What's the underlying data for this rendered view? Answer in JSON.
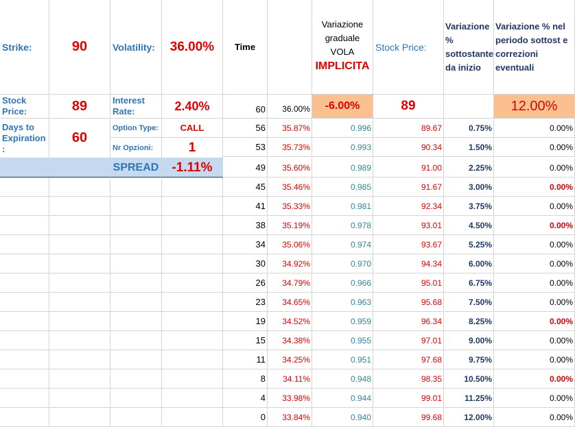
{
  "params": {
    "strike_label": "Strike:",
    "strike_value": "90",
    "volatility_label": "Volatility:",
    "volatility_value": "36.00%",
    "stock_price_label": "Stock Price:",
    "stock_price_value": "89",
    "interest_label": "Interest Rate:",
    "interest_value": "2.40%",
    "days_label": "Days to Expiration :",
    "days_value": "60",
    "option_type_label": "Option Type:",
    "option_type_value": "CALL",
    "nr_opzioni_label": "Nr Opzioni:",
    "nr_opzioni_value": "1",
    "spread_label": "SPREAD",
    "spread_value": "-1.11%"
  },
  "headers": {
    "time": "Time",
    "vola_line1": "Variazione graduale VOLA",
    "vola_line2": "IMPLICITA",
    "stock_price": "Stock Price:",
    "var_sottostante": "Variazione % sottostante da inizio",
    "var_periodo": "Variazione % nel periodo sottost e correzioni eventuali"
  },
  "first_row": {
    "time": "60",
    "vol": "36.00%",
    "vola_change": "-6.00%",
    "price": "89",
    "var_periodo": "12.00%"
  },
  "rows": [
    {
      "time": "56",
      "vol": "35.87%",
      "factor": "0.996",
      "price": "89.67",
      "pct": "0.75%",
      "corr": "0.00%",
      "corr_red": false
    },
    {
      "time": "53",
      "vol": "35.73%",
      "factor": "0.993",
      "price": "90.34",
      "pct": "1.50%",
      "corr": "0.00%",
      "corr_red": false
    },
    {
      "time": "49",
      "vol": "35.60%",
      "factor": "0.989",
      "price": "91.00",
      "pct": "2.25%",
      "corr": "0.00%",
      "corr_red": false
    },
    {
      "time": "45",
      "vol": "35.46%",
      "factor": "0.985",
      "price": "91.67",
      "pct": "3.00%",
      "corr": "0.00%",
      "corr_red": true
    },
    {
      "time": "41",
      "vol": "35.33%",
      "factor": "0.981",
      "price": "92.34",
      "pct": "3.75%",
      "corr": "0.00%",
      "corr_red": false
    },
    {
      "time": "38",
      "vol": "35.19%",
      "factor": "0.978",
      "price": "93.01",
      "pct": "4.50%",
      "corr": "0.00%",
      "corr_red": true
    },
    {
      "time": "34",
      "vol": "35.06%",
      "factor": "0.974",
      "price": "93.67",
      "pct": "5.25%",
      "corr": "0.00%",
      "corr_red": false
    },
    {
      "time": "30",
      "vol": "34.92%",
      "factor": "0.970",
      "price": "94.34",
      "pct": "6.00%",
      "corr": "0.00%",
      "corr_red": false
    },
    {
      "time": "26",
      "vol": "34.79%",
      "factor": "0.966",
      "price": "95.01",
      "pct": "6.75%",
      "corr": "0.00%",
      "corr_red": false
    },
    {
      "time": "23",
      "vol": "34.65%",
      "factor": "0.963",
      "price": "95.68",
      "pct": "7.50%",
      "corr": "0.00%",
      "corr_red": false
    },
    {
      "time": "19",
      "vol": "34.52%",
      "factor": "0.959",
      "price": "96.34",
      "pct": "8.25%",
      "corr": "0.00%",
      "corr_red": true
    },
    {
      "time": "15",
      "vol": "34.38%",
      "factor": "0.955",
      "price": "97.01",
      "pct": "9.00%",
      "corr": "0.00%",
      "corr_red": false
    },
    {
      "time": "11",
      "vol": "34.25%",
      "factor": "0.951",
      "price": "97.68",
      "pct": "9.75%",
      "corr": "0.00%",
      "corr_red": false
    },
    {
      "time": "8",
      "vol": "34.11%",
      "factor": "0.948",
      "price": "98.35",
      "pct": "10.50%",
      "corr": "0.00%",
      "corr_red": true
    },
    {
      "time": "4",
      "vol": "33.98%",
      "factor": "0.944",
      "price": "99.01",
      "pct": "11.25%",
      "corr": "0.00%",
      "corr_red": false
    },
    {
      "time": "0",
      "vol": "33.84%",
      "factor": "0.940",
      "price": "99.68",
      "pct": "12.00%",
      "corr": "0.00%",
      "corr_red": false
    }
  ]
}
